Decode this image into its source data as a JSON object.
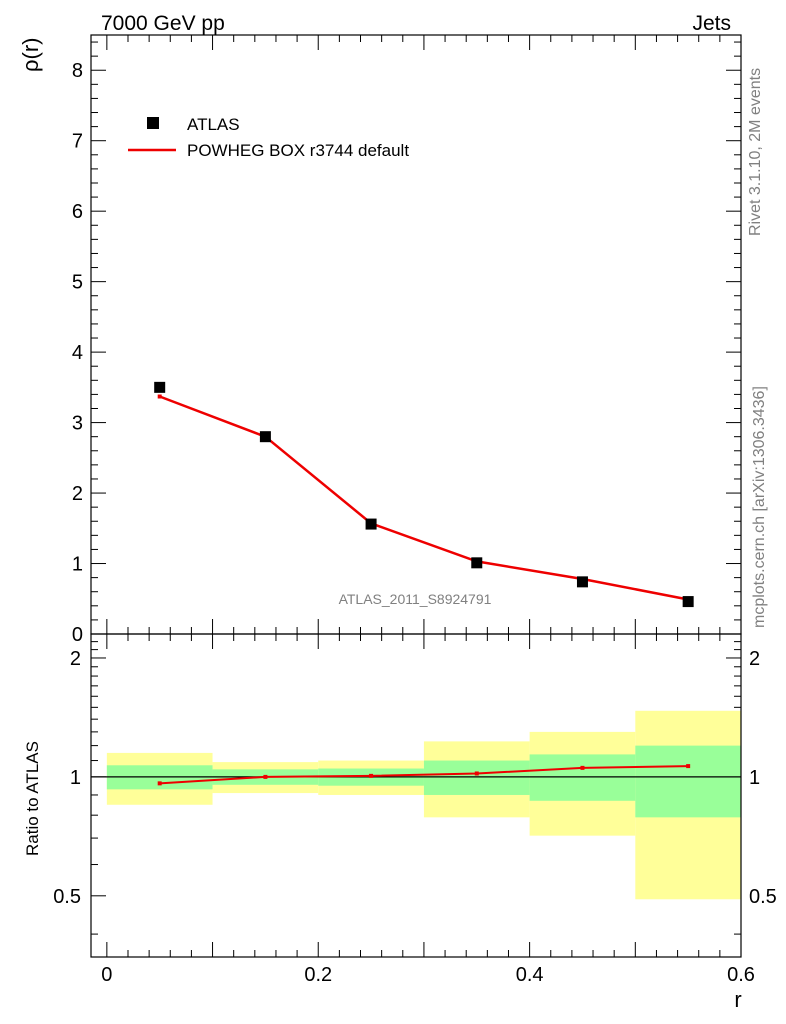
{
  "header": {
    "left": "7000 GeV pp",
    "right": "Jets"
  },
  "side_labels": {
    "rivet": "Rivet 3.1.10,  2M events",
    "site": "mcplots.cern.ch [arXiv:1306.3436]"
  },
  "analysis_label": "ATLAS_2011_S8924791",
  "colors": {
    "data": "#000000",
    "mc": "#ee0000",
    "band_inner": "#99ff99",
    "band_outer": "#ffff99",
    "watermark": "#808080"
  },
  "chart_data": [
    {
      "type": "scatter",
      "title": "",
      "ylabel": "ρ(r)",
      "xlabel": "",
      "xlim": [
        -0.015,
        0.6
      ],
      "ylim": [
        0,
        8.5
      ],
      "yticks": [
        0,
        1,
        2,
        3,
        4,
        5,
        6,
        7,
        8
      ],
      "legend": {
        "position": "top-left"
      },
      "x": [
        0.05,
        0.15,
        0.25,
        0.35,
        0.45,
        0.55
      ],
      "series": [
        {
          "name": "ATLAS",
          "kind": "points",
          "values": [
            3.5,
            2.8,
            1.56,
            1.01,
            0.74,
            0.46
          ]
        },
        {
          "name": "POWHEG BOX r3744 default",
          "kind": "line",
          "values": [
            3.37,
            2.8,
            1.57,
            1.03,
            0.78,
            0.49
          ]
        }
      ]
    },
    {
      "type": "line",
      "ylabel": "Ratio to ATLAS",
      "xlabel": "r",
      "xlim": [
        -0.015,
        0.6
      ],
      "ylim": [
        0.35,
        2.3
      ],
      "xticks": [
        0,
        0.2,
        0.4,
        0.6
      ],
      "xtick_labels": [
        "0",
        "0.2",
        "0.4",
        "0.6"
      ],
      "yticks": [
        0.5,
        1,
        2
      ],
      "ytick_labels": [
        "0.5",
        "1",
        "2"
      ],
      "bins": [
        [
          0,
          0.1
        ],
        [
          0.1,
          0.2
        ],
        [
          0.2,
          0.3
        ],
        [
          0.3,
          0.4
        ],
        [
          0.4,
          0.5
        ],
        [
          0.5,
          0.6
        ]
      ],
      "inner_band": {
        "low": [
          0.93,
          0.955,
          0.95,
          0.9,
          0.87,
          0.79
        ],
        "high": [
          1.07,
          1.045,
          1.05,
          1.1,
          1.14,
          1.2
        ]
      },
      "outer_band": {
        "low": [
          0.85,
          0.91,
          0.9,
          0.79,
          0.71,
          0.49
        ],
        "high": [
          1.15,
          1.09,
          1.1,
          1.23,
          1.3,
          1.47
        ]
      },
      "series": [
        {
          "name": "POWHEG BOX r3744 default / ATLAS",
          "x": [
            0.05,
            0.15,
            0.25,
            0.35,
            0.45,
            0.55
          ],
          "values": [
            0.963,
            1.0,
            1.006,
            1.02,
            1.054,
            1.065
          ]
        }
      ],
      "reference_line": 1
    }
  ]
}
